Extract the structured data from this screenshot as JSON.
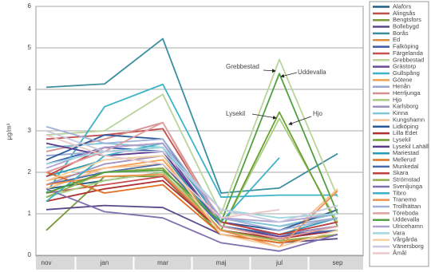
{
  "chart_data": {
    "type": "line",
    "y_label": "µg/m³",
    "categories": [
      "nov",
      "jan",
      "mar",
      "maj",
      "jul",
      "sep"
    ],
    "ylim": [
      0,
      6
    ],
    "yticks": [
      0,
      1,
      2,
      3,
      4,
      5,
      6
    ],
    "grid": true,
    "legend": "right",
    "annotations": [
      "Grebbestad",
      "Uddevalla",
      "Lysekil",
      "Hjo"
    ],
    "series": [
      {
        "name": "Alafors",
        "color": "#1f5f80",
        "values": [
          1.6,
          1.8,
          2.0,
          0.6,
          0.4,
          0.6
        ]
      },
      {
        "name": "Alingsås",
        "color": "#c0504d",
        "values": [
          2.8,
          2.9,
          3.05,
          0.8,
          0.5,
          0.7
        ]
      },
      {
        "name": "Bengtsfors",
        "color": "#7a9a3a",
        "values": [
          0.6,
          1.9,
          1.9,
          0.5,
          0.3,
          0.5
        ]
      },
      {
        "name": "Bollebygd",
        "color": "#5b4a8a",
        "values": [
          1.1,
          1.2,
          1.15,
          0.5,
          0.3,
          0.4
        ]
      },
      {
        "name": "Borås",
        "color": "#3a8fa0",
        "values": [
          4.05,
          4.13,
          5.22,
          1.5,
          1.62,
          2.45
        ]
      },
      {
        "name": "Ed",
        "color": "#e08a3c",
        "values": [
          1.7,
          2.0,
          2.1,
          0.6,
          0.35,
          0.5
        ]
      },
      {
        "name": "Falköping",
        "color": "#3b5ba8",
        "values": [
          2.2,
          2.6,
          2.5,
          0.7,
          0.5,
          0.7
        ]
      },
      {
        "name": "Färgelanda",
        "color": "#c85050",
        "values": [
          1.5,
          1.7,
          1.9,
          0.6,
          0.4,
          0.6
        ]
      },
      {
        "name": "Grebbestad",
        "color": "#b8d49a",
        "values": [
          2.9,
          3.0,
          3.88,
          1.0,
          4.72,
          1.4
        ]
      },
      {
        "name": "Grästorp",
        "color": "#6a4a9a",
        "values": [
          2.0,
          2.5,
          2.6,
          0.7,
          0.5,
          0.8
        ]
      },
      {
        "name": "Gullspång",
        "color": "#3cb4c8",
        "values": [
          1.5,
          3.58,
          4.12,
          1.4,
          1.45,
          1.45
        ]
      },
      {
        "name": "Götene",
        "color": "#f0a050",
        "values": [
          1.8,
          2.1,
          2.3,
          0.7,
          0.4,
          0.7
        ]
      },
      {
        "name": "Henån",
        "color": "#95a8d0",
        "values": [
          2.4,
          2.5,
          2.6,
          0.9,
          0.7,
          0.9
        ]
      },
      {
        "name": "Herrljunga",
        "color": "#d49090",
        "values": [
          2.5,
          2.8,
          3.2,
          0.8,
          0.6,
          0.9
        ]
      },
      {
        "name": "Hjo",
        "color": "#a8cc80",
        "values": [
          1.4,
          1.8,
          2.0,
          0.6,
          3.3,
          0.8
        ]
      },
      {
        "name": "Karlsborg",
        "color": "#a090c0",
        "values": [
          1.7,
          2.2,
          2.4,
          0.8,
          0.5,
          0.7
        ]
      },
      {
        "name": "Kinna",
        "color": "#80c8d8",
        "values": [
          2.6,
          2.7,
          2.6,
          0.9,
          0.7,
          1.0
        ]
      },
      {
        "name": "Kungshamn",
        "color": "#f8c090",
        "values": [
          1.6,
          2.1,
          2.2,
          0.6,
          0.3,
          1.6
        ]
      },
      {
        "name": "Lidköping",
        "color": "#2a5a9a",
        "values": [
          2.3,
          2.9,
          2.8,
          0.8,
          0.6,
          1.1
        ]
      },
      {
        "name": "Lilla Edet",
        "color": "#b03030",
        "values": [
          1.3,
          1.6,
          1.8,
          0.6,
          0.4,
          0.6
        ]
      },
      {
        "name": "Lysekil",
        "color": "#6aa030",
        "values": [
          1.5,
          2.0,
          2.1,
          0.6,
          3.45,
          0.7
        ]
      },
      {
        "name": "Lysekil Lahälla",
        "color": "#5a3a8a",
        "values": [
          2.7,
          2.4,
          2.5,
          0.7,
          0.45,
          0.6
        ]
      },
      {
        "name": "Mariestad",
        "color": "#2a9ab0",
        "values": [
          1.9,
          2.3,
          2.4,
          0.7,
          0.5,
          0.9
        ]
      },
      {
        "name": "Mellerud",
        "color": "#e07020",
        "values": [
          2.0,
          1.5,
          1.7,
          0.5,
          0.3,
          0.5
        ]
      },
      {
        "name": "Munkedal",
        "color": "#4a6aa8",
        "values": [
          1.7,
          2.0,
          2.2,
          0.7,
          0.5,
          0.6
        ]
      },
      {
        "name": "Skara",
        "color": "#c04040",
        "values": [
          1.9,
          2.6,
          2.7,
          0.8,
          0.5,
          0.8
        ]
      },
      {
        "name": "Strömstad",
        "color": "#90b050",
        "values": [
          1.4,
          2.0,
          2.1,
          0.6,
          0.35,
          0.5
        ]
      },
      {
        "name": "Svenljunga",
        "color": "#8070b0",
        "values": [
          1.6,
          1.05,
          0.9,
          0.3,
          0.1,
          0.5
        ]
      },
      {
        "name": "Tibro",
        "color": "#40b0c8",
        "values": [
          1.3,
          2.4,
          2.7,
          0.8,
          2.35,
          null
        ]
      },
      {
        "name": "Tranemo",
        "color": "#f09050",
        "values": [
          1.7,
          1.9,
          1.95,
          0.6,
          0.2,
          1.55
        ]
      },
      {
        "name": "Trollhättan",
        "color": "#a0b0d8",
        "values": [
          3.1,
          2.7,
          2.8,
          0.9,
          0.6,
          0.9
        ]
      },
      {
        "name": "Töreboda",
        "color": "#e0a0a0",
        "values": [
          2.0,
          2.5,
          3.2,
          0.7,
          0.4,
          0.7
        ]
      },
      {
        "name": "Uddevalla",
        "color": "#50a040",
        "values": [
          1.5,
          2.0,
          2.05,
          0.8,
          4.38,
          1.0
        ]
      },
      {
        "name": "Ulricehamn",
        "color": "#b0a0d0",
        "values": [
          2.1,
          2.6,
          2.7,
          0.9,
          0.8,
          1.0
        ]
      },
      {
        "name": "Vara",
        "color": "#a0d8e0",
        "values": [
          2.2,
          2.5,
          2.6,
          1.1,
          0.9,
          1.0
        ]
      },
      {
        "name": "Vårgårda",
        "color": "#f8d0a0",
        "values": [
          1.8,
          2.3,
          2.4,
          0.5,
          0.2,
          0.6
        ]
      },
      {
        "name": "Vänersborg",
        "color": "#c8c8e0",
        "values": [
          3.0,
          2.5,
          2.5,
          1.1,
          0.8,
          1.2
        ]
      },
      {
        "name": "Åmål",
        "color": "#e8c8c8",
        "values": [
          2.9,
          2.4,
          2.2,
          0.9,
          1.1,
          null
        ]
      }
    ]
  }
}
